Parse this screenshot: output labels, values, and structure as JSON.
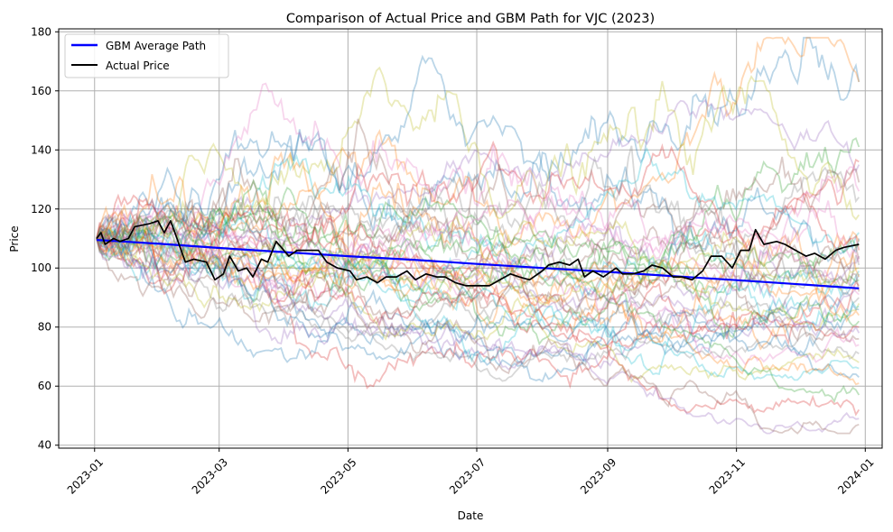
{
  "chart_data": {
    "type": "line",
    "title": "Comparison of Actual Price and GBM Path for VJC (2023)",
    "xlabel": "Date",
    "ylabel": "Price",
    "x_range": [
      "2022-12-15",
      "2024-01-09"
    ],
    "ylim": [
      39,
      181
    ],
    "x_ticks": [
      "2023-01",
      "2023-03",
      "2023-05",
      "2023-07",
      "2023-09",
      "2023-11",
      "2024-01"
    ],
    "y_ticks": [
      40,
      60,
      80,
      100,
      120,
      140,
      160,
      180
    ],
    "grid": true,
    "legend_position": "top-left",
    "series": [
      {
        "name": "GBM Average Path",
        "color": "#0000ff",
        "points": [
          [
            "2023-01-02",
            109.5
          ],
          [
            "2023-02-01",
            108.2
          ],
          [
            "2023-03-01",
            106.8
          ],
          [
            "2023-04-01",
            105.4
          ],
          [
            "2023-05-01",
            104.0
          ],
          [
            "2023-06-01",
            102.8
          ],
          [
            "2023-07-01",
            101.4
          ],
          [
            "2023-08-01",
            100.0
          ],
          [
            "2023-09-01",
            98.7
          ],
          [
            "2023-10-01",
            97.3
          ],
          [
            "2023-11-01",
            95.9
          ],
          [
            "2023-12-01",
            94.5
          ],
          [
            "2023-12-29",
            93.1
          ]
        ]
      },
      {
        "name": "Actual Price",
        "color": "#000000",
        "points": [
          [
            "2023-01-02",
            110
          ],
          [
            "2023-01-04",
            112
          ],
          [
            "2023-01-06",
            108
          ],
          [
            "2023-01-10",
            110
          ],
          [
            "2023-01-13",
            109
          ],
          [
            "2023-01-17",
            110
          ],
          [
            "2023-01-20",
            114
          ],
          [
            "2023-01-27",
            115
          ],
          [
            "2023-01-31",
            116
          ],
          [
            "2023-02-03",
            112
          ],
          [
            "2023-02-06",
            116
          ],
          [
            "2023-02-09",
            110
          ],
          [
            "2023-02-13",
            102
          ],
          [
            "2023-02-17",
            103
          ],
          [
            "2023-02-23",
            102
          ],
          [
            "2023-02-27",
            96
          ],
          [
            "2023-03-03",
            98
          ],
          [
            "2023-03-06",
            104
          ],
          [
            "2023-03-10",
            99
          ],
          [
            "2023-03-14",
            100
          ],
          [
            "2023-03-17",
            97
          ],
          [
            "2023-03-21",
            103
          ],
          [
            "2023-03-24",
            102
          ],
          [
            "2023-03-28",
            109
          ],
          [
            "2023-04-03",
            104
          ],
          [
            "2023-04-07",
            106
          ],
          [
            "2023-04-12",
            106
          ],
          [
            "2023-04-17",
            106
          ],
          [
            "2023-04-21",
            102
          ],
          [
            "2023-04-26",
            100
          ],
          [
            "2023-05-02",
            99
          ],
          [
            "2023-05-05",
            96
          ],
          [
            "2023-05-10",
            97
          ],
          [
            "2023-05-15",
            95
          ],
          [
            "2023-05-19",
            97
          ],
          [
            "2023-05-24",
            97
          ],
          [
            "2023-05-29",
            99
          ],
          [
            "2023-06-02",
            96
          ],
          [
            "2023-06-07",
            98
          ],
          [
            "2023-06-12",
            97
          ],
          [
            "2023-06-16",
            97
          ],
          [
            "2023-06-21",
            95
          ],
          [
            "2023-06-26",
            94
          ],
          [
            "2023-07-03",
            94
          ],
          [
            "2023-07-07",
            94
          ],
          [
            "2023-07-12",
            96
          ],
          [
            "2023-07-17",
            98
          ],
          [
            "2023-07-21",
            97
          ],
          [
            "2023-07-26",
            96
          ],
          [
            "2023-08-01",
            99
          ],
          [
            "2023-08-04",
            101
          ],
          [
            "2023-08-09",
            102
          ],
          [
            "2023-08-14",
            101
          ],
          [
            "2023-08-18",
            103
          ],
          [
            "2023-08-21",
            97
          ],
          [
            "2023-08-25",
            99
          ],
          [
            "2023-08-30",
            97
          ],
          [
            "2023-09-05",
            100
          ],
          [
            "2023-09-08",
            98
          ],
          [
            "2023-09-13",
            98
          ],
          [
            "2023-09-18",
            99
          ],
          [
            "2023-09-22",
            101
          ],
          [
            "2023-09-27",
            100
          ],
          [
            "2023-10-02",
            97
          ],
          [
            "2023-10-06",
            97
          ],
          [
            "2023-10-11",
            96
          ],
          [
            "2023-10-16",
            99
          ],
          [
            "2023-10-20",
            104
          ],
          [
            "2023-10-25",
            104
          ],
          [
            "2023-10-30",
            100
          ],
          [
            "2023-11-03",
            106
          ],
          [
            "2023-11-07",
            106
          ],
          [
            "2023-11-10",
            113
          ],
          [
            "2023-11-14",
            108
          ],
          [
            "2023-11-20",
            109
          ],
          [
            "2023-11-24",
            108
          ],
          [
            "2023-11-29",
            106
          ],
          [
            "2023-12-04",
            104
          ],
          [
            "2023-12-08",
            105
          ],
          [
            "2023-12-13",
            103
          ],
          [
            "2023-12-18",
            106
          ],
          [
            "2023-12-22",
            107
          ],
          [
            "2023-12-29",
            108
          ]
        ]
      }
    ],
    "simulated_paths": {
      "color_cycle": [
        "#1f77b4",
        "#ff7f0e",
        "#2ca02c",
        "#d62728",
        "#9467bd",
        "#8c564b",
        "#e377c2",
        "#7f7f7f",
        "#bcbd22",
        "#17becf"
      ],
      "opacity": 0.3,
      "endpoints": [
        163,
        163,
        141,
        136,
        135,
        129,
        126,
        124,
        118,
        112,
        110,
        109,
        108,
        106,
        104,
        103,
        102,
        101,
        100,
        99,
        98,
        97,
        96,
        94,
        93,
        92,
        91,
        90,
        88,
        87,
        86,
        84,
        82,
        80,
        78,
        76,
        74,
        71,
        68,
        66,
        63,
        61,
        57,
        52,
        49,
        47
      ]
    }
  }
}
